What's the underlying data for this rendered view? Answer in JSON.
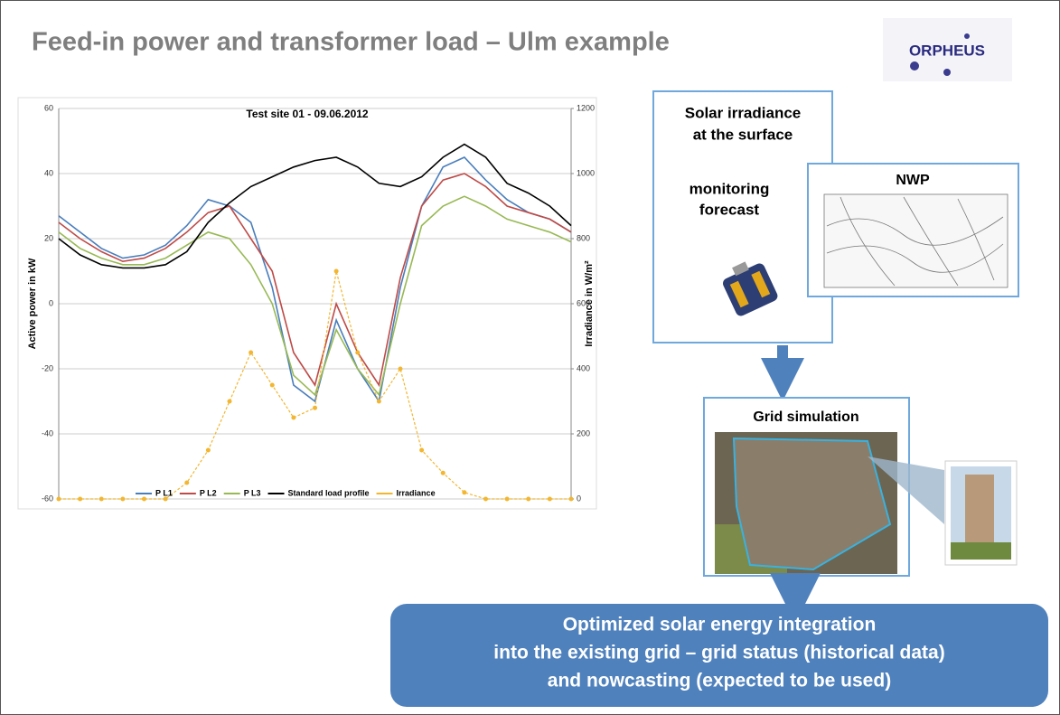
{
  "title": "Feed-in power and transformer load – Ulm example",
  "logo": "ORPHEUS",
  "chart_data": {
    "type": "line",
    "title": "Test site 01 - 09.06.2012",
    "ylabel": "Active power in kW",
    "y2label": "Irradiance in W/m²",
    "x": [
      0,
      1,
      2,
      3,
      4,
      5,
      6,
      7,
      8,
      9,
      10,
      11,
      12,
      13,
      14,
      15,
      16,
      17,
      18,
      19,
      20,
      21,
      22,
      23,
      24
    ],
    "xlim": [
      0,
      24
    ],
    "ylim": [
      -60,
      60
    ],
    "yticks": [
      -60,
      -40,
      -20,
      0,
      20,
      40,
      60
    ],
    "y2lim": [
      0,
      1200
    ],
    "y2ticks": [
      0,
      200,
      400,
      600,
      800,
      1000,
      1200
    ],
    "grid": true,
    "legend": "bottom",
    "series": [
      {
        "name": "P L1",
        "color": "#4a7ebb",
        "values": [
          27,
          22,
          17,
          14,
          15,
          18,
          24,
          32,
          30,
          25,
          5,
          -25,
          -30,
          -5,
          -20,
          -30,
          5,
          30,
          42,
          45,
          38,
          32,
          28,
          26,
          22
        ]
      },
      {
        "name": "P L2",
        "color": "#be4b48",
        "values": [
          25,
          20,
          16,
          13,
          14,
          17,
          22,
          28,
          30,
          20,
          10,
          -15,
          -25,
          0,
          -15,
          -25,
          8,
          30,
          38,
          40,
          36,
          30,
          28,
          26,
          22
        ]
      },
      {
        "name": "P L3",
        "color": "#98b954",
        "values": [
          22,
          17,
          14,
          12,
          12,
          14,
          18,
          22,
          20,
          12,
          0,
          -22,
          -28,
          -8,
          -20,
          -28,
          0,
          24,
          30,
          33,
          30,
          26,
          24,
          22,
          19
        ]
      },
      {
        "name": "Standard load profile",
        "color": "#000000",
        "values": [
          20,
          15,
          12,
          11,
          11,
          12,
          16,
          25,
          31,
          36,
          39,
          42,
          44,
          45,
          42,
          37,
          36,
          39,
          45,
          49,
          45,
          37,
          34,
          30,
          24
        ]
      },
      {
        "name": "Irradiance",
        "color": "#f2b630",
        "axis": "y2",
        "values": [
          0,
          0,
          0,
          0,
          0,
          0,
          50,
          150,
          300,
          450,
          350,
          250,
          280,
          700,
          450,
          300,
          400,
          150,
          80,
          20,
          0,
          0,
          0,
          0,
          0
        ]
      }
    ]
  },
  "diagram": {
    "solar": [
      "Solar irradiance",
      "at the surface"
    ],
    "solar_sub": [
      "monitoring",
      "forecast"
    ],
    "nwp": "NWP",
    "grid": "Grid simulation",
    "conclusion": [
      "Optimized solar energy integration",
      "into the existing grid – grid status (historical data)",
      "and nowcasting (expected to be used)"
    ]
  }
}
